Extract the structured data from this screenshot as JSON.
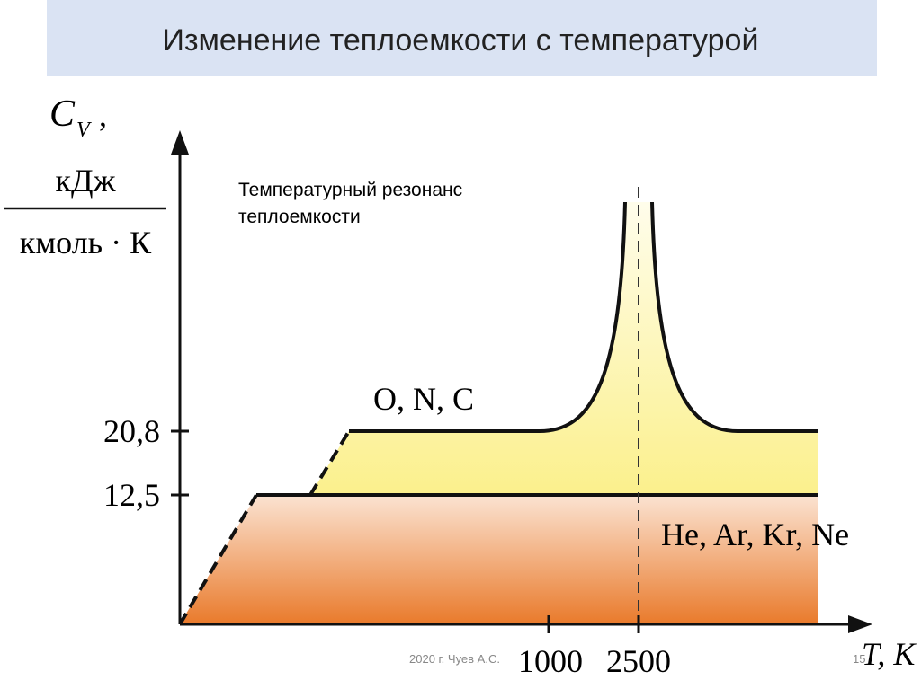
{
  "header": {
    "title": "Изменение теплоемкости с температурой"
  },
  "axes": {
    "y_label": {
      "symbol": "C",
      "subscript": "V",
      "suffix": ",",
      "numerator": "кДж",
      "denominator": "кмоль · К"
    },
    "x_label": "T, K",
    "y_ticks": [
      "20,8",
      "12,5"
    ],
    "x_ticks": [
      "1000",
      "2500"
    ]
  },
  "annotations": {
    "resonance": [
      "Температурный резонанс",
      "теплоемкости"
    ],
    "polyatomic": "O, N, C",
    "monatomic": "He, Ar, Kr, Ne"
  },
  "footer": {
    "author": "2020 г. Чуев А.С.",
    "page": "15"
  }
}
